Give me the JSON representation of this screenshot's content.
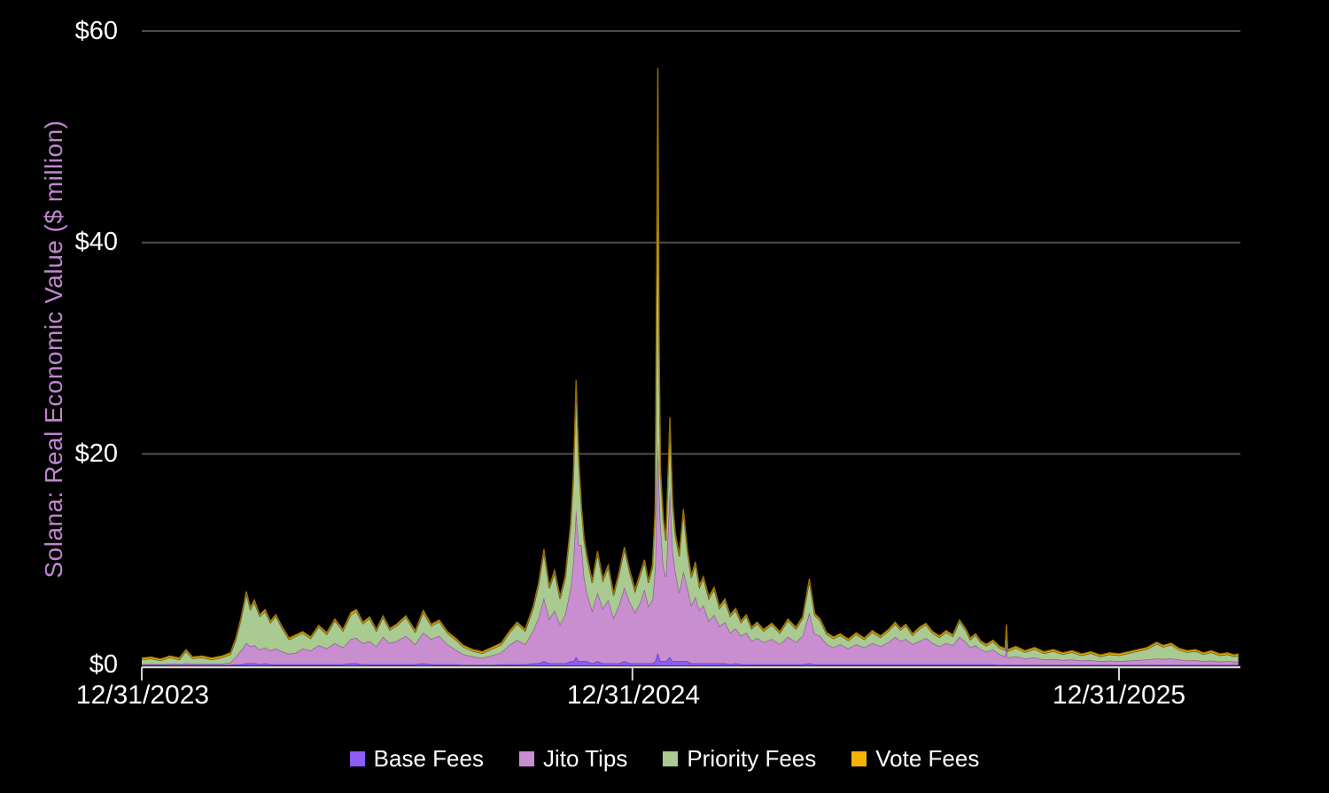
{
  "chart_data": {
    "type": "area",
    "stacked": true,
    "ylabel": "Solana: Real Economic Value ($ million)",
    "ylim": [
      0,
      60
    ],
    "yticks": [
      0,
      20,
      40,
      60
    ],
    "ytick_labels": [
      "$0",
      "$20",
      "$40",
      "$60"
    ],
    "x_unit": "days since 12/31/2023 (daily series, 12/31/2023 – late Mar 2026)",
    "x_tick_days": [
      0,
      366,
      729
    ],
    "x_tick_labels": [
      "12/31/2023",
      "12/31/2024",
      "12/31/2025"
    ],
    "grid": "horizontal gridlines on, legend bottom",
    "style": {
      "background": "#000000",
      "gridline": "#4d4d4d",
      "axis_line": "#d2d2d2",
      "tick_text": "#ffffff",
      "ylabel_color": "#c086cf"
    },
    "days": [
      0,
      7,
      14,
      21,
      28,
      33,
      38,
      45,
      52,
      60,
      66,
      70,
      74,
      78,
      81,
      84,
      88,
      92,
      96,
      100,
      105,
      110,
      115,
      120,
      126,
      132,
      138,
      144,
      150,
      156,
      160,
      165,
      170,
      175,
      180,
      185,
      190,
      197,
      204,
      210,
      216,
      222,
      228,
      234,
      240,
      247,
      254,
      261,
      268,
      274,
      280,
      286,
      292,
      296,
      300,
      304,
      308,
      312,
      316,
      320,
      322,
      324,
      326,
      328,
      330,
      332,
      336,
      340,
      344,
      348,
      352,
      356,
      360,
      364,
      368,
      372,
      375,
      378,
      381,
      383,
      385,
      386,
      387,
      389,
      391,
      394,
      396,
      398,
      401,
      404,
      407,
      410,
      413,
      416,
      419,
      423,
      427,
      431,
      435,
      439,
      443,
      447,
      451,
      455,
      459,
      464,
      470,
      476,
      482,
      488,
      493,
      498,
      502,
      506,
      511,
      516,
      521,
      527,
      533,
      539,
      545,
      551,
      557,
      562,
      566,
      570,
      575,
      580,
      585,
      590,
      595,
      600,
      605,
      610,
      615,
      618,
      622,
      626,
      630,
      635,
      640,
      644,
      645,
      646,
      652,
      659,
      666,
      673,
      680,
      687,
      694,
      701,
      708,
      715,
      722,
      729,
      736,
      743,
      750,
      757,
      762,
      768,
      774,
      780,
      786,
      792,
      798,
      804,
      810,
      815,
      818
    ],
    "series": [
      {
        "name": "Base Fees",
        "color": "#8b5cf6",
        "edge": "#5a35c0",
        "values": [
          0.05,
          0.05,
          0.05,
          0.05,
          0.05,
          0.05,
          0.05,
          0.05,
          0.05,
          0.05,
          0.05,
          0.1,
          0.1,
          0.2,
          0.2,
          0.2,
          0.1,
          0.2,
          0.1,
          0.1,
          0.1,
          0.1,
          0.1,
          0.1,
          0.1,
          0.1,
          0.1,
          0.1,
          0.1,
          0.2,
          0.2,
          0.1,
          0.1,
          0.1,
          0.1,
          0.1,
          0.1,
          0.1,
          0.1,
          0.2,
          0.1,
          0.1,
          0.1,
          0.1,
          0.05,
          0.05,
          0.05,
          0.05,
          0.1,
          0.1,
          0.1,
          0.1,
          0.2,
          0.2,
          0.4,
          0.2,
          0.2,
          0.2,
          0.2,
          0.4,
          0.4,
          0.8,
          0.4,
          0.4,
          0.4,
          0.4,
          0.2,
          0.4,
          0.2,
          0.2,
          0.2,
          0.2,
          0.4,
          0.2,
          0.2,
          0.2,
          0.2,
          0.2,
          0.2,
          0.4,
          1.2,
          0.8,
          0.4,
          0.4,
          0.4,
          0.8,
          0.4,
          0.4,
          0.4,
          0.4,
          0.4,
          0.2,
          0.2,
          0.2,
          0.2,
          0.2,
          0.2,
          0.2,
          0.2,
          0.1,
          0.2,
          0.1,
          0.1,
          0.1,
          0.1,
          0.1,
          0.1,
          0.1,
          0.1,
          0.1,
          0.1,
          0.2,
          0.1,
          0.1,
          0.1,
          0.1,
          0.1,
          0.1,
          0.1,
          0.1,
          0.1,
          0.1,
          0.1,
          0.1,
          0.1,
          0.1,
          0.1,
          0.1,
          0.1,
          0.1,
          0.1,
          0.1,
          0.1,
          0.1,
          0.1,
          0.1,
          0.1,
          0.1,
          0.1,
          0.1,
          0.05,
          0.05,
          0.1,
          0.05,
          0.05,
          0.05,
          0.05,
          0.05,
          0.05,
          0.05,
          0.05,
          0.05,
          0.05,
          0.05,
          0.05,
          0.05,
          0.05,
          0.05,
          0.05,
          0.05,
          0.05,
          0.05,
          0.05,
          0.05,
          0.05,
          0.05,
          0.05,
          0.05,
          0.05,
          0.05,
          0.05
        ]
      },
      {
        "name": "Jito Tips",
        "color": "#c88ecf",
        "edge": "#8a5694",
        "values": [
          0.05,
          0.08,
          0.05,
          0.1,
          0.08,
          0.15,
          0.1,
          0.1,
          0.08,
          0.12,
          0.2,
          0.7,
          1.3,
          1.9,
          1.6,
          1.7,
          1.4,
          1.5,
          1.3,
          1.5,
          1.2,
          1.0,
          1.1,
          1.5,
          1.3,
          1.8,
          1.5,
          2.0,
          1.6,
          2.3,
          2.4,
          2.0,
          2.2,
          1.7,
          2.6,
          2.0,
          2.2,
          2.7,
          1.9,
          2.9,
          2.4,
          2.7,
          1.9,
          1.4,
          1.0,
          0.8,
          0.65,
          0.9,
          1.1,
          1.8,
          2.3,
          1.9,
          3.1,
          4.3,
          6.0,
          4.2,
          5.0,
          3.7,
          4.7,
          7.0,
          9.5,
          14.0,
          11.0,
          11.0,
          8.0,
          6.5,
          5.0,
          6.5,
          5.2,
          6.0,
          4.3,
          5.5,
          7.0,
          5.8,
          4.8,
          5.8,
          7.0,
          5.4,
          6.0,
          9.0,
          20.0,
          16.0,
          13.0,
          9.0,
          8.0,
          16.0,
          10.5,
          8.5,
          6.5,
          8.5,
          7.0,
          5.5,
          6.3,
          5.0,
          5.5,
          4.0,
          4.6,
          3.5,
          3.9,
          3.0,
          3.3,
          2.7,
          3.0,
          2.2,
          2.5,
          2.1,
          2.4,
          1.9,
          2.6,
          2.1,
          2.7,
          4.8,
          2.9,
          2.7,
          1.9,
          1.6,
          1.9,
          1.5,
          1.9,
          1.6,
          2.0,
          1.7,
          2.1,
          2.6,
          2.2,
          2.4,
          1.9,
          2.2,
          2.5,
          2.0,
          1.7,
          2.0,
          1.8,
          2.6,
          2.1,
          1.6,
          1.8,
          1.4,
          1.2,
          1.4,
          1.0,
          0.8,
          2.0,
          0.7,
          0.8,
          0.6,
          0.7,
          0.5,
          0.55,
          0.45,
          0.5,
          0.4,
          0.45,
          0.35,
          0.4,
          0.35,
          0.4,
          0.45,
          0.5,
          0.6,
          0.55,
          0.6,
          0.5,
          0.4,
          0.45,
          0.35,
          0.4,
          0.3,
          0.35,
          0.3,
          0.3
        ]
      },
      {
        "name": "Priority Fees",
        "color": "#a9ca90",
        "edge": "#404a2c",
        "values": [
          0.45,
          0.52,
          0.35,
          0.6,
          0.42,
          1.15,
          0.5,
          0.6,
          0.42,
          0.58,
          0.8,
          1.55,
          2.95,
          4.7,
          3.5,
          4.1,
          3.15,
          3.4,
          2.65,
          3.05,
          2.15,
          1.35,
          1.55,
          1.45,
          1.15,
          1.75,
          1.35,
          2.15,
          1.55,
          2.3,
          2.5,
          1.85,
          2.15,
          1.45,
          1.85,
          1.25,
          1.45,
          1.75,
          1.15,
          1.9,
          1.25,
          1.35,
          1.05,
          0.95,
          0.7,
          0.5,
          0.45,
          0.6,
          0.75,
          1.15,
          1.55,
          1.25,
          2.1,
          3.1,
          4.4,
          2.9,
          3.6,
          2.4,
          3.4,
          5.9,
          7.8,
          11.9,
          7.8,
          3.3,
          3.4,
          3.4,
          2.6,
          3.7,
          2.6,
          3.1,
          2.1,
          2.9,
          3.6,
          2.8,
          2.0,
          2.6,
          2.6,
          2.2,
          3.1,
          5.3,
          35.0,
          12.9,
          4.8,
          4.4,
          3.4,
          6.4,
          4.3,
          3.4,
          3.4,
          5.7,
          3.4,
          2.6,
          3.1,
          2.2,
          2.5,
          2.1,
          2.4,
          1.7,
          2.0,
          1.55,
          1.7,
          1.25,
          1.55,
          1.15,
          1.35,
          1.05,
          1.35,
          1.05,
          1.55,
          1.25,
          1.65,
          3.0,
          1.75,
          1.45,
          0.95,
          0.85,
          0.85,
          0.75,
          0.95,
          0.75,
          1.05,
          0.85,
          1.05,
          1.25,
          1.05,
          1.25,
          0.85,
          1.15,
          1.25,
          0.95,
          0.85,
          1.05,
          0.85,
          1.45,
          1.05,
          0.75,
          0.95,
          0.65,
          0.55,
          0.75,
          0.6,
          0.6,
          1.65,
          0.6,
          0.8,
          0.6,
          0.8,
          0.6,
          0.75,
          0.55,
          0.7,
          0.5,
          0.65,
          0.45,
          0.6,
          0.55,
          0.7,
          0.85,
          1.0,
          1.4,
          1.15,
          1.3,
          0.9,
          0.8,
          0.85,
          0.65,
          0.8,
          0.6,
          0.65,
          0.5,
          0.6
        ]
      },
      {
        "name": "Vote Fees",
        "color": "#f5b301",
        "edge": "#9c7100",
        "values": [
          0.15,
          0.15,
          0.15,
          0.15,
          0.15,
          0.15,
          0.15,
          0.15,
          0.15,
          0.15,
          0.15,
          0.15,
          0.15,
          0.2,
          0.2,
          0.2,
          0.15,
          0.2,
          0.15,
          0.15,
          0.15,
          0.15,
          0.15,
          0.15,
          0.15,
          0.15,
          0.15,
          0.15,
          0.15,
          0.2,
          0.2,
          0.15,
          0.15,
          0.15,
          0.15,
          0.15,
          0.15,
          0.15,
          0.15,
          0.2,
          0.15,
          0.15,
          0.15,
          0.15,
          0.15,
          0.15,
          0.15,
          0.15,
          0.15,
          0.15,
          0.15,
          0.15,
          0.2,
          0.2,
          0.2,
          0.2,
          0.2,
          0.2,
          0.2,
          0.2,
          0.3,
          0.3,
          0.3,
          0.3,
          0.2,
          0.2,
          0.2,
          0.2,
          0.2,
          0.2,
          0.2,
          0.2,
          0.2,
          0.2,
          0.2,
          0.2,
          0.2,
          0.2,
          0.2,
          0.3,
          0.3,
          0.3,
          0.3,
          0.2,
          0.2,
          0.3,
          0.3,
          0.2,
          0.2,
          0.2,
          0.2,
          0.2,
          0.2,
          0.2,
          0.2,
          0.2,
          0.2,
          0.2,
          0.2,
          0.15,
          0.2,
          0.15,
          0.15,
          0.15,
          0.15,
          0.15,
          0.15,
          0.15,
          0.15,
          0.15,
          0.15,
          0.2,
          0.15,
          0.15,
          0.15,
          0.15,
          0.15,
          0.15,
          0.15,
          0.15,
          0.15,
          0.15,
          0.15,
          0.15,
          0.15,
          0.15,
          0.15,
          0.15,
          0.15,
          0.15,
          0.15,
          0.15,
          0.15,
          0.15,
          0.15,
          0.15,
          0.15,
          0.15,
          0.15,
          0.15,
          0.15,
          0.15,
          0.15,
          0.15,
          0.15,
          0.15,
          0.15,
          0.15,
          0.15,
          0.15,
          0.15,
          0.15,
          0.15,
          0.15,
          0.15,
          0.15,
          0.15,
          0.15,
          0.15,
          0.15,
          0.15,
          0.15,
          0.15,
          0.15,
          0.15,
          0.15,
          0.15,
          0.15,
          0.15,
          0.15,
          0.15
        ]
      }
    ]
  },
  "legend": {
    "items": [
      {
        "label": "Base Fees",
        "color": "#8b5cf6"
      },
      {
        "label": "Jito Tips",
        "color": "#c88ecf"
      },
      {
        "label": "Priority Fees",
        "color": "#a9ca90"
      },
      {
        "label": "Vote Fees",
        "color": "#f5b301"
      }
    ]
  }
}
